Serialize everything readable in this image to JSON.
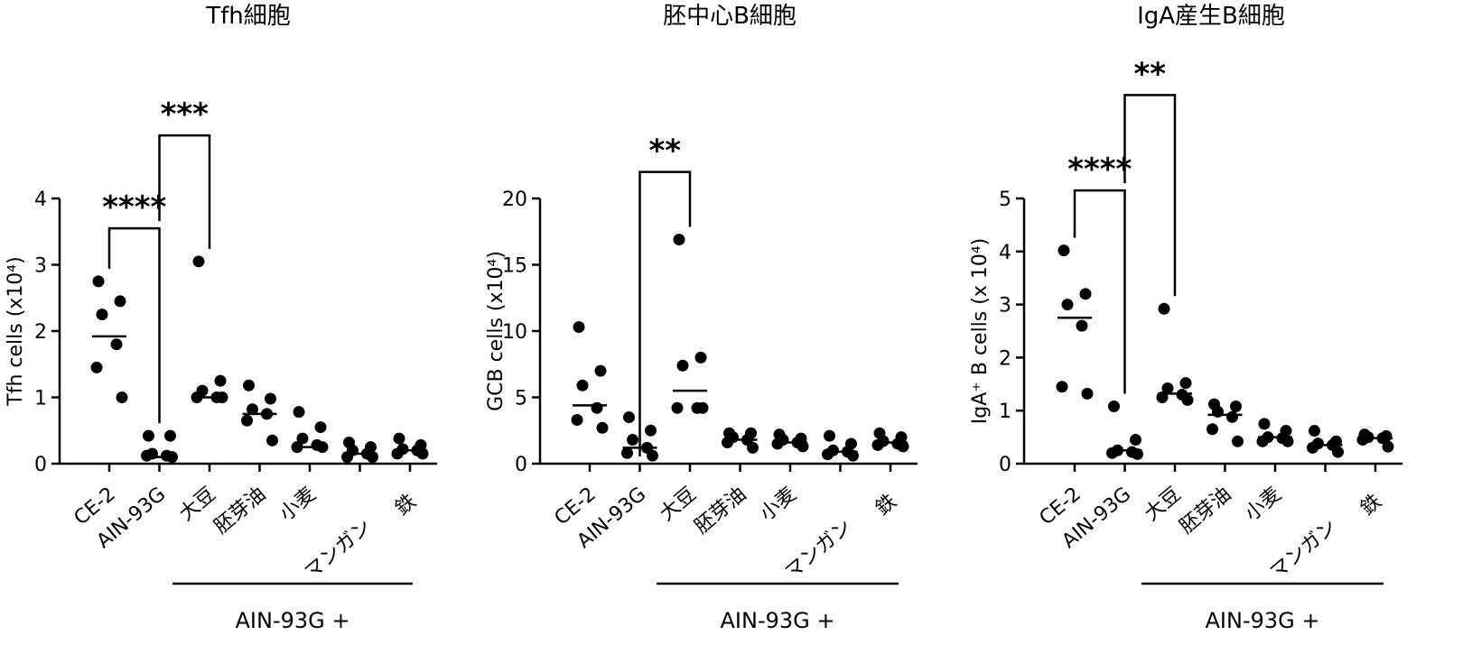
{
  "chart_data": [
    {
      "type": "scatter",
      "title": "Tfh細胞",
      "ylabel": "Tfh cells (x10⁴)",
      "ylim": [
        0,
        4
      ],
      "yticks": [
        0,
        1,
        2,
        3,
        4
      ],
      "categories": [
        "CE-2",
        "AIN-93G",
        "大豆",
        "胚芽油",
        "小麦",
        "マンガン",
        "鉄"
      ],
      "points": [
        [
          2.75,
          2.45,
          2.25,
          1.8,
          1.45,
          1.0
        ],
        [
          0.42,
          0.42,
          0.15,
          0.12,
          0.12,
          0.1
        ],
        [
          3.05,
          1.25,
          1.1,
          1.0,
          1.0,
          1.0
        ],
        [
          1.18,
          0.98,
          0.82,
          0.75,
          0.65,
          0.35
        ],
        [
          0.78,
          0.55,
          0.38,
          0.28,
          0.25,
          0.25
        ],
        [
          0.32,
          0.25,
          0.2,
          0.15,
          0.1,
          0.1
        ],
        [
          0.38,
          0.28,
          0.22,
          0.2,
          0.15,
          0.15
        ]
      ],
      "means": [
        1.92,
        0.1,
        1.0,
        0.75,
        0.25,
        0.15,
        0.2
      ],
      "significance": [
        {
          "from": 0,
          "to": 1,
          "label": "****",
          "y": 3.55
        },
        {
          "from": 1,
          "to": 2,
          "label": "***",
          "y": 4.95
        }
      ]
    },
    {
      "type": "scatter",
      "title": "胚中心B細胞",
      "ylabel": "GCB cells (x10⁴)",
      "ylim": [
        0,
        20
      ],
      "yticks": [
        0,
        5,
        10,
        15,
        20
      ],
      "categories": [
        "CE-2",
        "AIN-93G",
        "大豆",
        "胚芽油",
        "小麦",
        "マンガン",
        "鉄"
      ],
      "points": [
        [
          10.3,
          7.0,
          5.9,
          4.2,
          3.3,
          2.7
        ],
        [
          3.5,
          2.5,
          1.8,
          1.2,
          0.8,
          0.6
        ],
        [
          16.9,
          8.0,
          7.4,
          4.2,
          4.2,
          4.2
        ],
        [
          2.3,
          2.3,
          2.0,
          1.8,
          1.6,
          1.2
        ],
        [
          2.2,
          1.9,
          1.8,
          1.6,
          1.5,
          1.3
        ],
        [
          2.1,
          1.5,
          1.0,
          0.9,
          0.7,
          0.6
        ],
        [
          2.3,
          2.0,
          1.7,
          1.5,
          1.4,
          1.3
        ]
      ],
      "means": [
        4.4,
        1.2,
        5.5,
        1.8,
        1.6,
        0.9,
        1.6
      ],
      "significance": [
        {
          "from": 1,
          "to": 2,
          "label": "**",
          "y": 22.0
        }
      ]
    },
    {
      "type": "scatter",
      "title": "IgA産生B細胞",
      "ylabel": "IgA⁺ B cells (x 10⁴)",
      "ylim": [
        0,
        5
      ],
      "yticks": [
        0,
        1,
        2,
        3,
        4,
        5
      ],
      "categories": [
        "CE-2",
        "AIN-93G",
        "大豆",
        "胚芽油",
        "小麦",
        "マンガン",
        "鉄"
      ],
      "points": [
        [
          4.02,
          3.2,
          3.0,
          2.6,
          1.45,
          1.32
        ],
        [
          1.08,
          0.45,
          0.25,
          0.22,
          0.2,
          0.18
        ],
        [
          2.92,
          1.52,
          1.42,
          1.3,
          1.25,
          1.2
        ],
        [
          1.12,
          1.08,
          0.98,
          0.88,
          0.65,
          0.42
        ],
        [
          0.75,
          0.62,
          0.5,
          0.48,
          0.42,
          0.42
        ],
        [
          0.62,
          0.42,
          0.38,
          0.35,
          0.3,
          0.22
        ],
        [
          0.55,
          0.52,
          0.5,
          0.48,
          0.45,
          0.32
        ]
      ],
      "means": [
        2.75,
        0.25,
        1.32,
        0.92,
        0.5,
        0.35,
        0.48
      ],
      "significance": [
        {
          "from": 0,
          "to": 1,
          "label": "****",
          "y": 5.15
        },
        {
          "from": 1,
          "to": 2,
          "label": "**",
          "y": 6.95
        }
      ]
    }
  ],
  "group_label": "AIN-93G +"
}
